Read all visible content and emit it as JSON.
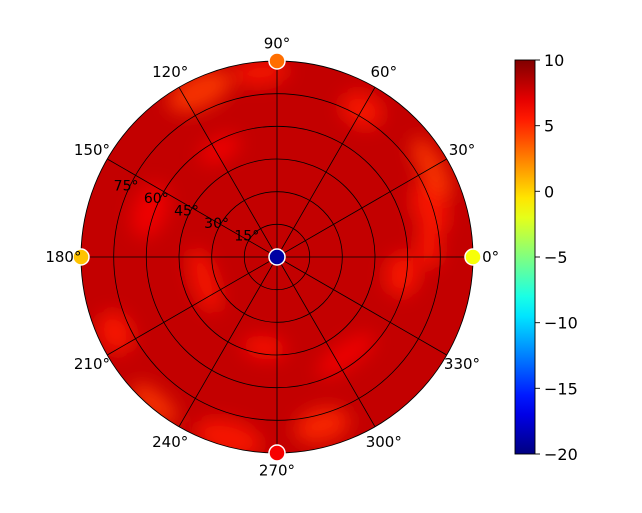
{
  "chart_data": {
    "type": "heatmap",
    "projection": "polar",
    "title": "",
    "angle_tick_labels": [
      "0°",
      "30°",
      "60°",
      "90°",
      "120°",
      "150°",
      "180°",
      "210°",
      "240°",
      "270°",
      "300°",
      "330°"
    ],
    "radial_tick_labels": [
      "15°",
      "30°",
      "45°",
      "60°",
      "75°"
    ],
    "radial_ticks": [
      15,
      30,
      45,
      60,
      75
    ],
    "radial_range": [
      0,
      90
    ],
    "grid": true,
    "field_description_value": 8,
    "warm_patches": [
      {
        "angle": 4,
        "radius": 70,
        "value": 5.5
      },
      {
        "angle": 18,
        "radius": 74,
        "value": 5.5
      },
      {
        "angle": 30,
        "radius": 82,
        "value": 4.5
      },
      {
        "angle": 60,
        "radius": 78,
        "value": 5.5
      },
      {
        "angle": 95,
        "radius": 85,
        "value": 5.5
      },
      {
        "angle": 115,
        "radius": 84,
        "value": 4.5
      },
      {
        "angle": 118,
        "radius": 56,
        "value": 6.5
      },
      {
        "angle": 160,
        "radius": 62,
        "value": 6.5
      },
      {
        "angle": 198,
        "radius": 35,
        "value": 5.5
      },
      {
        "angle": 205,
        "radius": 82,
        "value": 5.5
      },
      {
        "angle": 230,
        "radius": 88,
        "value": 4.5
      },
      {
        "angle": 255,
        "radius": 86,
        "value": 5.5
      },
      {
        "angle": 262,
        "radius": 42,
        "value": 6.0
      },
      {
        "angle": 285,
        "radius": 80,
        "value": 5.0
      },
      {
        "angle": 305,
        "radius": 55,
        "value": 6.5
      },
      {
        "angle": 352,
        "radius": 58,
        "value": 5.5
      }
    ],
    "markers": [
      {
        "angle": 0,
        "radius": 90,
        "value": -1.5
      },
      {
        "angle": 90,
        "radius": 90,
        "value": 3.0
      },
      {
        "angle": 180,
        "radius": 90,
        "value": 0.5
      },
      {
        "angle": 270,
        "radius": 90,
        "value": 6.5
      },
      {
        "angle": 0,
        "radius": 0,
        "value": -19
      }
    ],
    "colorbar": {
      "colormap": "jet",
      "range": [
        -20,
        10
      ],
      "tick_values": [
        10,
        5,
        0,
        -5,
        -10,
        -15,
        -20
      ],
      "tick_labels": [
        "10",
        "5",
        "0",
        "−5",
        "−10",
        "−15",
        "−20"
      ]
    }
  }
}
